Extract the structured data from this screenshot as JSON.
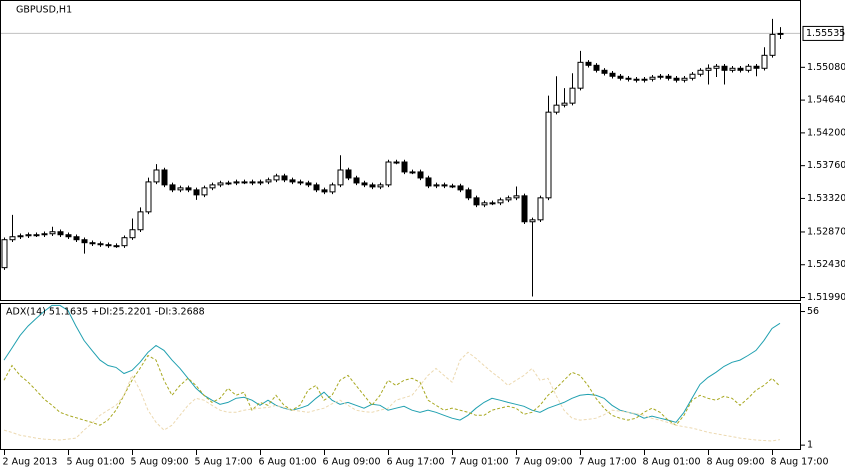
{
  "chart_data": [
    {
      "type": "candlestick",
      "title": "GBPUSD,H1",
      "open": [
        1.52391,
        1.52766,
        1.52806,
        1.52819,
        1.52833,
        1.52833,
        1.52846,
        1.52873,
        1.52833,
        1.52806,
        1.52766,
        1.52726,
        1.52712,
        1.52699,
        1.52686,
        1.52686,
        1.52793,
        1.529,
        1.5314,
        1.53542,
        1.53702,
        1.53502,
        1.53435,
        1.53462,
        1.53435,
        1.53368,
        1.53462,
        1.53502,
        1.53528,
        1.53528,
        1.53542,
        1.53542,
        1.53528,
        1.53542,
        1.53569,
        1.53622,
        1.53569,
        1.53542,
        1.53528,
        1.53502,
        1.53435,
        1.53408,
        1.53502,
        1.53702,
        1.53595,
        1.53528,
        1.53502,
        1.53475,
        1.53502,
        1.53809,
        1.53809,
        1.53676,
        1.53676,
        1.53595,
        1.53488,
        1.53502,
        1.53488,
        1.53488,
        1.53435,
        1.53328,
        1.53234,
        1.53261,
        1.53261,
        1.53301,
        1.53328,
        1.53355,
        1.53007,
        1.53033,
        1.53328,
        1.54478,
        1.54572,
        1.54599,
        1.548,
        1.55147,
        1.55107,
        1.5504,
        1.55,
        1.5496,
        1.54933,
        1.5492,
        1.54907,
        1.5492,
        1.54947,
        1.5496,
        1.54933,
        1.54907,
        1.54933,
        1.54987,
        1.5504,
        1.55067,
        1.55094,
        1.5504,
        1.55067,
        1.5504,
        1.55094,
        1.55067,
        1.55241,
        1.55522
      ],
      "high": [
        1.52796,
        1.531,
        1.52849,
        1.52863,
        1.52863,
        1.52876,
        1.5294,
        1.52903,
        1.52863,
        1.52836,
        1.52796,
        1.52756,
        1.52742,
        1.52729,
        1.52716,
        1.52823,
        1.5305,
        1.532,
        1.536,
        1.5378,
        1.53732,
        1.53532,
        1.53492,
        1.53492,
        1.53465,
        1.53492,
        1.53532,
        1.53558,
        1.53558,
        1.53572,
        1.53572,
        1.53572,
        1.53572,
        1.53599,
        1.53652,
        1.53652,
        1.53599,
        1.53572,
        1.53558,
        1.53532,
        1.53465,
        1.53532,
        1.539,
        1.53732,
        1.53625,
        1.53558,
        1.53532,
        1.53532,
        1.53839,
        1.53839,
        1.53839,
        1.53706,
        1.53706,
        1.53625,
        1.53532,
        1.53532,
        1.53518,
        1.53518,
        1.53465,
        1.53358,
        1.53291,
        1.53291,
        1.53331,
        1.53358,
        1.5348,
        1.53385,
        1.53063,
        1.53358,
        1.547,
        1.5496,
        1.548,
        1.55,
        1.553,
        1.55177,
        1.55137,
        1.5507,
        1.5503,
        1.5499,
        1.54963,
        1.5495,
        1.5495,
        1.54977,
        1.5499,
        1.5499,
        1.54963,
        1.54963,
        1.55017,
        1.5507,
        1.5512,
        1.55124,
        1.55124,
        1.55097,
        1.55097,
        1.55124,
        1.55124,
        1.5535,
        1.5573,
        1.5562
      ],
      "low": [
        1.52361,
        1.52736,
        1.52776,
        1.52789,
        1.52803,
        1.52803,
        1.52816,
        1.52803,
        1.52776,
        1.52736,
        1.5258,
        1.52682,
        1.52669,
        1.52656,
        1.52656,
        1.52656,
        1.52763,
        1.5287,
        1.5311,
        1.53512,
        1.53472,
        1.53405,
        1.53405,
        1.53405,
        1.533,
        1.53338,
        1.53432,
        1.53472,
        1.53498,
        1.53498,
        1.53512,
        1.53498,
        1.53498,
        1.53512,
        1.53539,
        1.53539,
        1.53512,
        1.53498,
        1.53472,
        1.53405,
        1.53378,
        1.53378,
        1.53472,
        1.53565,
        1.53498,
        1.53472,
        1.53445,
        1.53445,
        1.53472,
        1.53779,
        1.53646,
        1.53646,
        1.53565,
        1.53458,
        1.53458,
        1.53458,
        1.53458,
        1.53405,
        1.53298,
        1.53204,
        1.53204,
        1.53231,
        1.53231,
        1.53271,
        1.53298,
        1.52977,
        1.52003,
        1.53003,
        1.53298,
        1.54448,
        1.54542,
        1.54569,
        1.5477,
        1.55077,
        1.5501,
        1.5497,
        1.5493,
        1.54903,
        1.5489,
        1.54877,
        1.54877,
        1.5489,
        1.54917,
        1.54903,
        1.54877,
        1.54877,
        1.54903,
        1.54957,
        1.5485,
        1.5495,
        1.5485,
        1.5501,
        1.5501,
        1.5501,
        1.5496,
        1.55037,
        1.55211,
        1.5546
      ],
      "close": [
        1.52766,
        1.52806,
        1.52819,
        1.52833,
        1.52833,
        1.52846,
        1.52873,
        1.52833,
        1.52806,
        1.52766,
        1.52726,
        1.52712,
        1.52699,
        1.52686,
        1.52686,
        1.52793,
        1.529,
        1.5314,
        1.53542,
        1.53702,
        1.53502,
        1.53435,
        1.53462,
        1.53435,
        1.53368,
        1.53462,
        1.53502,
        1.53528,
        1.53528,
        1.53542,
        1.53542,
        1.53528,
        1.53542,
        1.53569,
        1.53622,
        1.53569,
        1.53542,
        1.53528,
        1.53502,
        1.53435,
        1.53408,
        1.53502,
        1.53702,
        1.53595,
        1.53528,
        1.53502,
        1.53475,
        1.53502,
        1.53809,
        1.53809,
        1.53676,
        1.53676,
        1.53595,
        1.53488,
        1.53502,
        1.53488,
        1.53488,
        1.53435,
        1.53328,
        1.53234,
        1.53261,
        1.53261,
        1.53301,
        1.53328,
        1.53355,
        1.53007,
        1.53033,
        1.53328,
        1.54478,
        1.54572,
        1.54599,
        1.548,
        1.55147,
        1.55107,
        1.5504,
        1.55,
        1.5496,
        1.54933,
        1.5492,
        1.54907,
        1.5492,
        1.54947,
        1.5496,
        1.54933,
        1.54907,
        1.54933,
        1.54987,
        1.5504,
        1.55067,
        1.55094,
        1.5504,
        1.55067,
        1.5504,
        1.55094,
        1.55067,
        1.55241,
        1.55522,
        1.55535
      ],
      "bull_color": "#ffffff",
      "bear_color": "#000000",
      "wick_color": "#000000",
      "price_line": 1.55535,
      "price_line_color": "#c0c0c0",
      "xlim": [
        -0.5,
        99.5
      ],
      "ylim": [
        1.5195,
        1.55977
      ],
      "yticks": [
        {
          "value": 1.5508,
          "label": "1.55080"
        },
        {
          "value": 1.5464,
          "label": "1.54640"
        },
        {
          "value": 1.542,
          "label": "1.54200"
        },
        {
          "value": 1.5376,
          "label": "1.53760"
        },
        {
          "value": 1.5332,
          "label": "1.53320"
        },
        {
          "value": 1.5287,
          "label": "1.52870"
        },
        {
          "value": 1.5243,
          "label": "1.52430"
        },
        {
          "value": 1.5199,
          "label": "1.51990"
        }
      ]
    },
    {
      "type": "line",
      "title": "ADX(14) 51.1635 +DI:25.2201 -DI:3.2688",
      "series": [
        {
          "color": "#20a0b0",
          "dash": false,
          "values": [
            36,
            41,
            46.1,
            50,
            53.1,
            56,
            58.5,
            58.5,
            56.4,
            50,
            44.1,
            40,
            36,
            33.8,
            33,
            30.5,
            31.8,
            35.1,
            39.2,
            42,
            40,
            36,
            32.6,
            28.5,
            24.4,
            21.5,
            19.5,
            17.8,
            18.6,
            20.3,
            20.7,
            19.5,
            17.4,
            19.5,
            17.4,
            16.2,
            15.4,
            16.2,
            17.4,
            20.3,
            22.8,
            19.5,
            17.8,
            18.6,
            17.4,
            16.2,
            17.8,
            17.4,
            15.4,
            16.2,
            17,
            15.4,
            14.5,
            15.4,
            14.5,
            13.3,
            12.1,
            11.3,
            13.3,
            16.2,
            18.6,
            20.3,
            19.5,
            18.6,
            17.8,
            17,
            15.4,
            14.5,
            16.2,
            17.4,
            18.6,
            20.3,
            21.5,
            21.9,
            21.5,
            20.3,
            17.4,
            15.4,
            14.5,
            13.7,
            12.1,
            12.9,
            12.1,
            11.3,
            10.4,
            14.5,
            20.3,
            26,
            28.9,
            31,
            33.4,
            35.1,
            36,
            37.9,
            40,
            44.1,
            49,
            51.16
          ]
        },
        {
          "color": "#a8a820",
          "dash": true,
          "values": [
            27.7,
            33.8,
            29.7,
            27,
            23.6,
            20,
            17.4,
            14.5,
            13.3,
            12.3,
            11.3,
            10.3,
            9.2,
            11.3,
            15.4,
            21.5,
            27.7,
            32.6,
            37.9,
            36,
            27.7,
            21.5,
            25.6,
            28.5,
            25.6,
            21.5,
            18.6,
            20.3,
            24.4,
            21.5,
            22.8,
            15.4,
            18.6,
            17.4,
            21.5,
            17.4,
            15.4,
            17.4,
            23.6,
            25.6,
            19.5,
            21.5,
            27.7,
            29.7,
            25.6,
            21.5,
            17.4,
            21.5,
            27.7,
            25.6,
            27.7,
            28.5,
            26.9,
            19.5,
            17.4,
            15.4,
            16.2,
            15.4,
            14.5,
            13.3,
            13.3,
            15.4,
            16.2,
            17,
            16.2,
            13.7,
            14.5,
            17.4,
            21.5,
            24.4,
            27.7,
            31,
            29.7,
            25.6,
            20.3,
            16.2,
            13.3,
            12.1,
            11.3,
            12.1,
            14.5,
            16.2,
            14.5,
            11.3,
            9.2,
            13.3,
            19.5,
            21.5,
            20.3,
            19.5,
            21.1,
            20.3,
            17.4,
            20.3,
            23.6,
            25.6,
            28.5,
            25.22
          ]
        },
        {
          "color": "#ecd9b0",
          "dash": true,
          "values": [
            7.2,
            6.2,
            5.1,
            4.5,
            3.9,
            3.5,
            3.3,
            3.1,
            3.5,
            3.9,
            7.2,
            10,
            13.3,
            15.4,
            17.4,
            21.5,
            29.7,
            23.6,
            15.4,
            10.4,
            7.2,
            9.2,
            13.3,
            17.4,
            20.3,
            19.5,
            17.4,
            15.4,
            14.5,
            14.5,
            15.4,
            15.8,
            16.2,
            16.5,
            17.4,
            16.5,
            15.4,
            15,
            14.5,
            15.4,
            16.2,
            18,
            19.5,
            17.4,
            15.4,
            14.8,
            14.5,
            15.4,
            16.2,
            19.5,
            20.5,
            21.5,
            25.6,
            29.7,
            32.6,
            29.7,
            26.9,
            36,
            39.2,
            36.7,
            33.8,
            31,
            28.5,
            25.6,
            27.7,
            29.7,
            32.6,
            27.7,
            28.5,
            21.5,
            15.4,
            12.1,
            11.3,
            11.6,
            12.1,
            13.5,
            15.4,
            15,
            14.5,
            14,
            13.3,
            12,
            11.3,
            10.3,
            9.2,
            8.6,
            8,
            7.2,
            6.3,
            5.7,
            5.1,
            4.5,
            3.9,
            3.5,
            3.1,
            2.9,
            2.7,
            3.27
          ]
        }
      ],
      "xlim": [
        -0.5,
        99.5
      ],
      "ylim": [
        -1,
        59.3
      ],
      "yticks": [
        56,
        1
      ],
      "xticks": [
        {
          "value": 0,
          "label": "2 Aug 2013"
        },
        {
          "value": 8,
          "label": "5 Aug 01:00"
        },
        {
          "value": 16,
          "label": "5 Aug 09:00"
        },
        {
          "value": 24,
          "label": "5 Aug 17:00"
        },
        {
          "value": 32,
          "label": "6 Aug 01:00"
        },
        {
          "value": 40,
          "label": "6 Aug 09:00"
        },
        {
          "value": 48,
          "label": "6 Aug 17:00"
        },
        {
          "value": 56,
          "label": "7 Aug 01:00"
        },
        {
          "value": 64,
          "label": "7 Aug 09:00"
        },
        {
          "value": 72,
          "label": "7 Aug 17:00"
        },
        {
          "value": 80,
          "label": "8 Aug 01:00"
        },
        {
          "value": 88,
          "label": "8 Aug 09:00"
        },
        {
          "value": 96,
          "label": "8 Aug 17:00"
        }
      ]
    }
  ]
}
